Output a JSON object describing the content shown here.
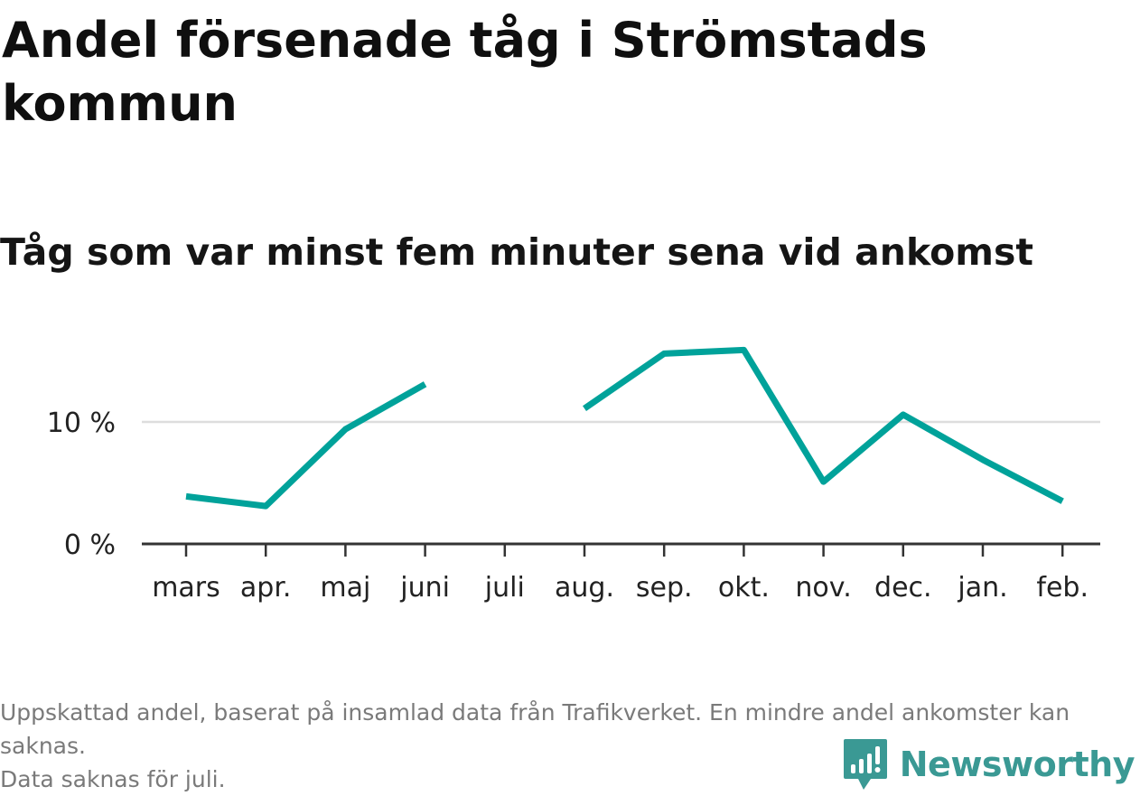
{
  "header": {
    "title": "Andel försenade tåg i Strömstads kommun",
    "subtitle": "Tåg som var minst fem minuter sena vid ankomst"
  },
  "footer": {
    "note_line1": "Uppskattad andel, baserat på insamlad data från Trafikverket. En mindre andel ankomster kan saknas.",
    "note_line2": "Data saknas för juli."
  },
  "brand": {
    "name": "Newsworthy",
    "icon": "newsworthy-logo-icon",
    "color": "#3a9994"
  },
  "chart_data": {
    "type": "line",
    "title": "Andel försenade tåg i Strömstads kommun",
    "subtitle": "Tåg som var minst fem minuter sena vid ankomst",
    "xlabel": "",
    "ylabel": "",
    "categories": [
      "mars",
      "apr.",
      "maj",
      "juni",
      "juli",
      "aug.",
      "sep.",
      "okt.",
      "nov.",
      "dec.",
      "jan.",
      "feb."
    ],
    "series": [
      {
        "name": "Andel försenade tåg",
        "color": "#00a29a",
        "values": [
          3.9,
          3.1,
          9.4,
          13.1,
          null,
          11.1,
          15.6,
          15.9,
          5.1,
          10.6,
          6.9,
          3.5
        ]
      }
    ],
    "yticks": [
      0,
      10
    ],
    "ytick_labels": [
      "0 %",
      "10 %"
    ],
    "ylim": [
      0,
      18
    ],
    "grid": true,
    "legend": "none"
  }
}
